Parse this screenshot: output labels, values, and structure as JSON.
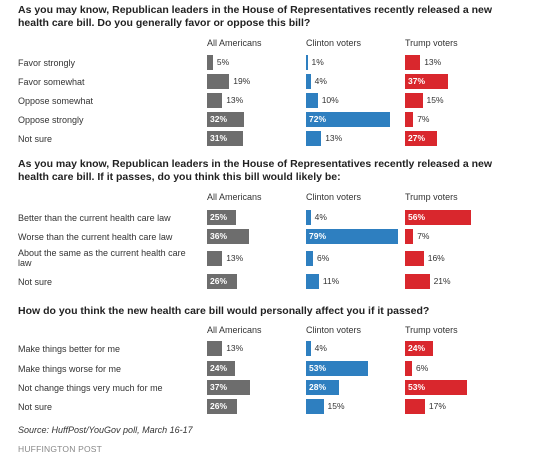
{
  "chart_data": [
    {
      "type": "bar",
      "title": "As you may know, Republican leaders in the House of Representatives recently released a new health care bill. Do you generally favor or oppose this bill?",
      "columns": [
        "All Americans",
        "Clinton voters",
        "Trump voters"
      ],
      "categories": [
        "Favor strongly",
        "Favor somewhat",
        "Oppose somewhat",
        "Oppose strongly",
        "Not sure"
      ],
      "series": [
        {
          "name": "All Americans",
          "values": [
            5,
            19,
            13,
            32,
            31
          ]
        },
        {
          "name": "Clinton voters",
          "values": [
            1,
            4,
            10,
            72,
            13
          ]
        },
        {
          "name": "Trump voters",
          "values": [
            13,
            37,
            15,
            7,
            27
          ]
        }
      ]
    },
    {
      "type": "bar",
      "title": "As you may know, Republican leaders in the House of Representatives recently released a new health care bill. If it passes, do you think this bill would likely be:",
      "columns": [
        "All Americans",
        "Clinton voters",
        "Trump voters"
      ],
      "categories": [
        "Better than the current health care law",
        "Worse than the current health care law",
        "About the same as the current health care law",
        "Not sure"
      ],
      "series": [
        {
          "name": "All Americans",
          "values": [
            25,
            36,
            13,
            26
          ]
        },
        {
          "name": "Clinton voters",
          "values": [
            4,
            79,
            6,
            11
          ]
        },
        {
          "name": "Trump voters",
          "values": [
            56,
            7,
            16,
            21
          ]
        }
      ]
    },
    {
      "type": "bar",
      "title": "How do you think the new health care bill would personally affect you if it passed?",
      "columns": [
        "All Americans",
        "Clinton voters",
        "Trump voters"
      ],
      "categories": [
        "Make things better for me",
        "Make things worse for me",
        "Not change things very much for me",
        "Not sure"
      ],
      "series": [
        {
          "name": "All Americans",
          "values": [
            13,
            24,
            37,
            26
          ]
        },
        {
          "name": "Clinton voters",
          "values": [
            4,
            53,
            28,
            15
          ]
        },
        {
          "name": "Trump voters",
          "values": [
            24,
            6,
            53,
            17
          ]
        }
      ]
    }
  ],
  "colors": {
    "all": "#6d6d6d",
    "clinton": "#2e7fc0",
    "trump": "#d9272d"
  },
  "source": "Source: HuffPost/YouGov poll, March 16-17",
  "footer": "HUFFINGTON POST"
}
